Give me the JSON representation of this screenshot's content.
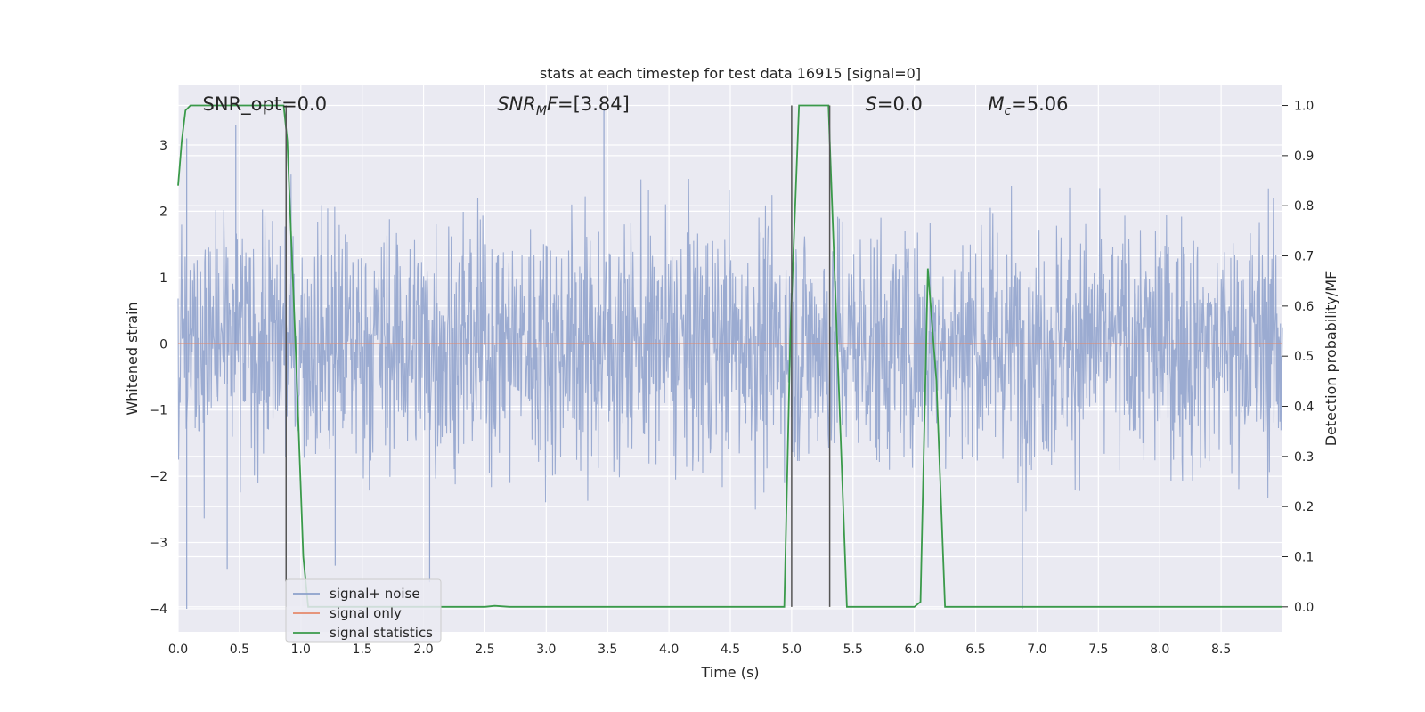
{
  "chart_data": {
    "type": "line",
    "title": "stats at each timestep for test data 16915 [signal=0]",
    "xlabel": "Time (s)",
    "ylabel": "Whitened strain",
    "y2label": "Detection probability/MF",
    "xlim": [
      0,
      9
    ],
    "ylim": [
      -4.35,
      3.9
    ],
    "y2lim": [
      -0.05,
      1.04
    ],
    "xticks": [
      "0.0",
      "0.5",
      "1.0",
      "1.5",
      "2.0",
      "2.5",
      "3.0",
      "3.5",
      "4.0",
      "4.5",
      "5.0",
      "5.5",
      "6.0",
      "6.5",
      "7.0",
      "7.5",
      "8.0",
      "8.5"
    ],
    "yticks": [
      "3",
      "2",
      "1",
      "0",
      "−1",
      "−2",
      "−3",
      "−4"
    ],
    "y2ticks": [
      "1.0",
      "0.9",
      "0.8",
      "0.7",
      "0.6",
      "0.5",
      "0.4",
      "0.3",
      "0.2",
      "0.1",
      "0.0"
    ],
    "grid": true,
    "legend_position": "lower-left",
    "annotations": [
      {
        "label": "SNR_opt=0.0",
        "t": 0.2
      },
      {
        "label": "SNR_MF=[3.84]",
        "t": 2.6,
        "math_base": "SNR",
        "math_sub": "M",
        "math_rest": "F=[3.84]"
      },
      {
        "label": "S=0.0",
        "t": 5.6,
        "math_base": "S",
        "math_rest": "=0.0"
      },
      {
        "label": "M_c=5.06",
        "t": 6.6,
        "math_base": "M",
        "math_sub": "c",
        "math_rest": "=5.06"
      }
    ],
    "vertical_markers": [
      {
        "name": "marker-line",
        "x": 0.88
      },
      {
        "name": "marker-line",
        "x": 5.0
      },
      {
        "name": "marker-line",
        "x": 5.31
      }
    ],
    "series": [
      {
        "name": "signal+ noise",
        "color": "#8da0cb",
        "axis": "left",
        "envelope_note": "dense whitened noise, approximately between -3.6 and 3.5",
        "peaks": [
          {
            "x": 0.07,
            "y": 3.1
          },
          {
            "x": 0.47,
            "y": 3.3
          },
          {
            "x": 0.07,
            "y": -4.0
          },
          {
            "x": 0.4,
            "y": -3.4
          },
          {
            "x": 3.47,
            "y": 3.55
          },
          {
            "x": 2.05,
            "y": -3.6
          },
          {
            "x": 6.88,
            "y": -4.0
          },
          {
            "x": 1.28,
            "y": -3.35
          }
        ]
      },
      {
        "name": "signal only",
        "color": "#e5896b",
        "axis": "left",
        "points": [
          [
            0,
            0
          ],
          [
            9,
            0
          ]
        ]
      },
      {
        "name": "signal statistics",
        "color": "#3a9a4a",
        "axis": "right",
        "points": [
          [
            0.0,
            0.84
          ],
          [
            0.03,
            0.93
          ],
          [
            0.06,
            0.99
          ],
          [
            0.1,
            1.0
          ],
          [
            0.55,
            1.0
          ],
          [
            0.86,
            1.0
          ],
          [
            0.89,
            0.93
          ],
          [
            0.96,
            0.5
          ],
          [
            1.02,
            0.1
          ],
          [
            1.06,
            0.0
          ],
          [
            2.5,
            0.0
          ],
          [
            2.58,
            0.002
          ],
          [
            2.7,
            0.0
          ],
          [
            4.94,
            0.0
          ],
          [
            4.99,
            0.55
          ],
          [
            5.06,
            1.0
          ],
          [
            5.3,
            1.0
          ],
          [
            5.33,
            0.8
          ],
          [
            5.45,
            0.0
          ],
          [
            6.0,
            0.0
          ],
          [
            6.05,
            0.01
          ],
          [
            6.11,
            0.675
          ],
          [
            6.18,
            0.45
          ],
          [
            6.25,
            0.0
          ],
          [
            9.0,
            0.0
          ]
        ]
      }
    ]
  }
}
